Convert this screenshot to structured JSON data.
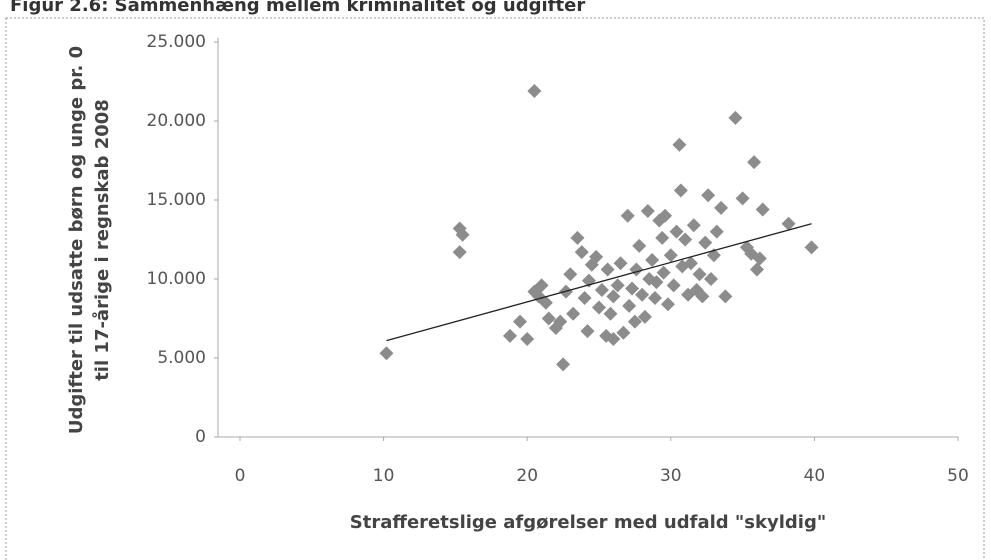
{
  "chart_data": {
    "type": "scatter",
    "title": "Figur 2.6: Sammenhæng mellem kriminalitet og udgifter",
    "x_label": "Strafferetslige afgørelser med udfald \"skyldig\"",
    "y_label": [
      "Udgifter til udsatte børn og unge pr. 0",
      "til 17-årige i regnskab 2008"
    ],
    "xlim": [
      0,
      50
    ],
    "xticks": [
      0,
      10,
      20,
      30,
      40,
      50
    ],
    "ylim": [
      0,
      25000
    ],
    "yticks": [
      0,
      {
        "value": 5000,
        "label": "5.000"
      },
      {
        "value": 10000,
        "label": "10.000"
      },
      {
        "value": 15000,
        "label": "15.000"
      },
      {
        "value": 20000,
        "label": "20.000"
      },
      {
        "value": 25000,
        "label": "25.000"
      }
    ],
    "series": [
      {
        "color": "#8c8c8c",
        "x": [
          10.2,
          15.3,
          15.5,
          15.3,
          18.8,
          19.5,
          20,
          20.5,
          20.5,
          20.8,
          21,
          21.3,
          21.5,
          22,
          22.3,
          22.5,
          22.7,
          23,
          23.2,
          23.5,
          23.8,
          24,
          24.2,
          24.3,
          24.5,
          24.8,
          25,
          25.2,
          25.5,
          25.6,
          25.8,
          26,
          26,
          26.3,
          26.5,
          26.7,
          27,
          27.1,
          27.3,
          27.5,
          27.6,
          27.8,
          28,
          28.2,
          28.4,
          28.5,
          28.7,
          28.9,
          29,
          29.2,
          29.4,
          29.5,
          29.6,
          29.8,
          30,
          30.2,
          30.4,
          30.6,
          30.7,
          30.8,
          31,
          31.2,
          31.4,
          31.6,
          31.8,
          32,
          32.2,
          32.4,
          32.6,
          32.8,
          33,
          33.2,
          33.5,
          33.8,
          34.5,
          35,
          35.3,
          35.6,
          35.8,
          36,
          36.2,
          36.4,
          38.2,
          39.8
        ],
        "values": [
          5300,
          13200,
          12800,
          11700,
          6400,
          7300,
          6200,
          21900,
          9200,
          8900,
          9600,
          8500,
          7500,
          6900,
          7300,
          4600,
          9200,
          10300,
          7800,
          12600,
          11700,
          8800,
          6700,
          9900,
          10900,
          11400,
          8200,
          9300,
          6400,
          10600,
          7800,
          6200,
          8900,
          9600,
          11000,
          6600,
          14000,
          8300,
          9400,
          7300,
          10600,
          12100,
          9000,
          7600,
          14300,
          10000,
          11200,
          8800,
          9800,
          13700,
          12600,
          10400,
          14000,
          8400,
          11500,
          9600,
          13000,
          18500,
          15600,
          10800,
          12500,
          9000,
          11000,
          13400,
          9300,
          10300,
          8900,
          12300,
          15300,
          10000,
          11500,
          13000,
          14500,
          8900,
          20200,
          15100,
          12000,
          11600,
          17400,
          10600,
          11300,
          14400,
          13500,
          12000
        ]
      }
    ],
    "trendline": {
      "color": "#222222",
      "x": [
        10.2,
        39.8
      ],
      "values": [
        6100,
        13500
      ]
    }
  }
}
